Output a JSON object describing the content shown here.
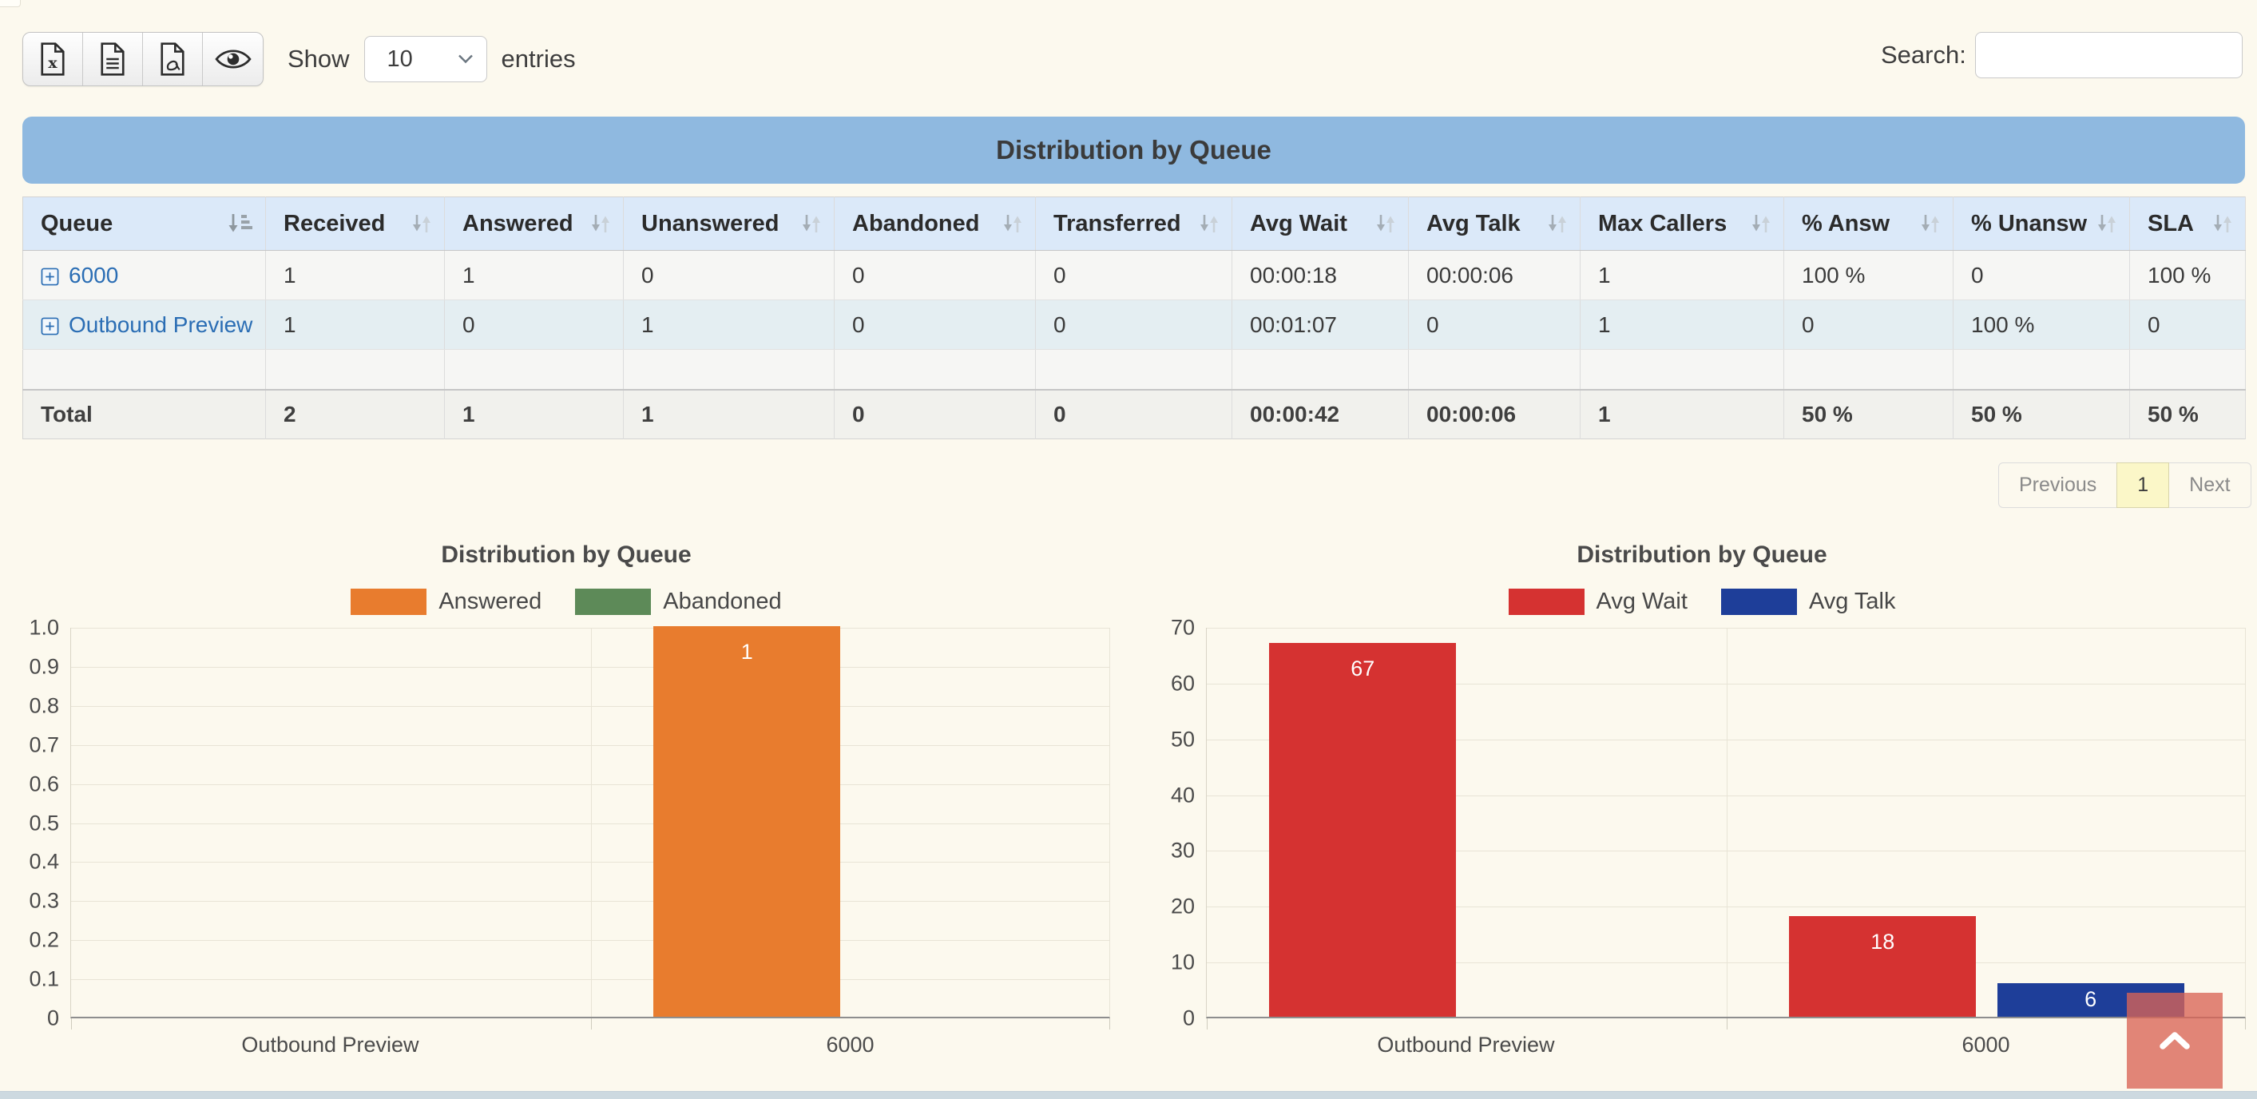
{
  "page": {
    "background": "#fcf9ee",
    "bottom_bar_color": "#cdd9e0"
  },
  "toolbar": {
    "export_buttons": [
      {
        "name": "excel",
        "icon": "file-excel-icon"
      },
      {
        "name": "text",
        "icon": "file-text-icon"
      },
      {
        "name": "pdf",
        "icon": "file-pdf-icon"
      },
      {
        "name": "visibility",
        "icon": "eye-icon"
      }
    ],
    "show_label": "Show",
    "page_size_value": "10",
    "entries_label": "entries",
    "search_label": "Search:",
    "search_value": ""
  },
  "banner": {
    "title": "Distribution by Queue",
    "color": "#8fb9e0"
  },
  "table": {
    "columns": [
      {
        "label": "Queue",
        "sort": "desc"
      },
      {
        "label": "Received",
        "sort": "none"
      },
      {
        "label": "Answered",
        "sort": "none"
      },
      {
        "label": "Unanswered",
        "sort": "none"
      },
      {
        "label": "Abandoned",
        "sort": "none"
      },
      {
        "label": "Transferred",
        "sort": "none"
      },
      {
        "label": "Avg Wait",
        "sort": "none"
      },
      {
        "label": "Avg Talk",
        "sort": "none"
      },
      {
        "label": "Max Callers",
        "sort": "none"
      },
      {
        "label": "% Answ",
        "sort": "none"
      },
      {
        "label": "% Unansw",
        "sort": "none"
      },
      {
        "label": "SLA",
        "sort": "none"
      }
    ],
    "rows": [
      {
        "queue": "6000",
        "expandable": true,
        "cells": [
          "1",
          "1",
          "0",
          "0",
          "0",
          "00:00:18",
          "00:00:06",
          "1",
          "100 %",
          "0",
          "100 %"
        ]
      },
      {
        "queue": "Outbound Preview",
        "expandable": true,
        "cells": [
          "1",
          "0",
          "1",
          "0",
          "0",
          "00:01:07",
          "0",
          "1",
          "0",
          "100 %",
          "0"
        ]
      },
      {
        "queue": "",
        "expandable": false,
        "cells": [
          "",
          "",
          "",
          "",
          "",
          "",
          "",
          "",
          "",
          "",
          ""
        ]
      }
    ],
    "total": {
      "label": "Total",
      "cells": [
        "2",
        "1",
        "1",
        "0",
        "0",
        "00:00:42",
        "00:00:06",
        "1",
        "50 %",
        "50 %",
        "50 %"
      ]
    }
  },
  "pagination": {
    "previous": "Previous",
    "current_page": "1",
    "next": "Next",
    "active_bg": "#fbf7c8"
  },
  "chart_data": [
    {
      "type": "bar",
      "title": "Distribution by Queue",
      "categories": [
        "Outbound Preview",
        "6000"
      ],
      "series": [
        {
          "name": "Answered",
          "color": "#e87c2e",
          "values": [
            0,
            1
          ]
        },
        {
          "name": "Abandoned",
          "color": "#5d8a58",
          "values": [
            0,
            0
          ]
        }
      ],
      "ylim": [
        0,
        1.0
      ],
      "ytick_labels": [
        "1.0",
        "0.9",
        "0.8",
        "0.7",
        "0.6",
        "0.5",
        "0.4",
        "0.3",
        "0.2",
        "0.1",
        "0"
      ],
      "grid": true,
      "legend_position": "top"
    },
    {
      "type": "bar",
      "title": "Distribution by Queue",
      "categories": [
        "Outbound Preview",
        "6000"
      ],
      "series": [
        {
          "name": "Avg Wait",
          "color": "#d53231",
          "values": [
            67,
            18
          ]
        },
        {
          "name": "Avg Talk",
          "color": "#1e3e99",
          "values": [
            0,
            6
          ]
        }
      ],
      "ylim": [
        0,
        70
      ],
      "ytick_labels": [
        "70",
        "60",
        "50",
        "40",
        "30",
        "20",
        "10",
        "0"
      ],
      "grid": true,
      "legend_position": "top"
    }
  ],
  "scroll_top_button": {
    "icon": "chevron-up-icon",
    "color": "#d86456"
  }
}
